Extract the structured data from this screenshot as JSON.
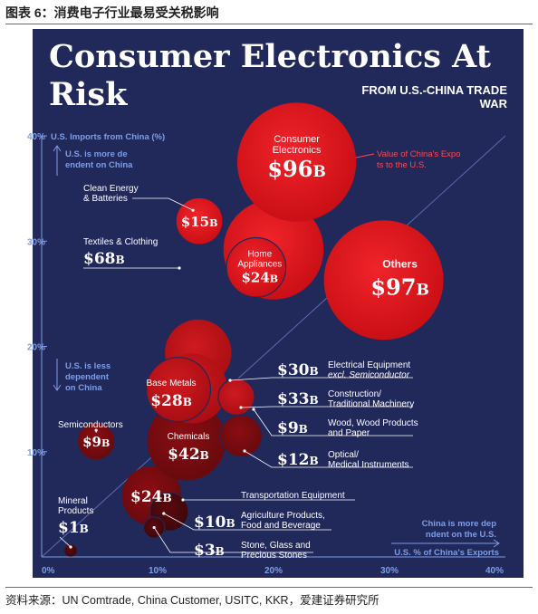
{
  "figure": {
    "caption": "图表 6：消费电子行业最易受关税影响",
    "source": "资料来源：UN Comtrade, China Customer, USITC, KKR，爱建证券研究所"
  },
  "chart_data": {
    "type": "scatter",
    "title": "Consumer Electronics At Risk",
    "subtitle": "FROM U.S.-CHINA TRADE WAR",
    "xlabel": "U.S. % of China's Exports",
    "ylabel": "U.S. Imports from China (%)",
    "xlim": [
      0,
      40
    ],
    "ylim": [
      0,
      40
    ],
    "xticks": [
      "0%",
      "10%",
      "20%",
      "30%",
      "40%"
    ],
    "yticks": [
      "10%",
      "20%",
      "30%",
      "40%"
    ],
    "size_legend": "Value of China's Exports to the U.S.",
    "annotations": {
      "more_dependent_on_china": "U.S. is more dependent on China",
      "less_dependent_on_china": "U.S. is less dependent on China",
      "china_more_dependent": "China is more dependent on the U.S."
    },
    "grid": false,
    "points": [
      {
        "name": "Consumer Electronics",
        "x": 22,
        "y": 37.5,
        "value": 96,
        "value_label": "$96B"
      },
      {
        "name": "Others",
        "x": 29.5,
        "y": 26.3,
        "value": 97,
        "value_label": "$97B"
      },
      {
        "name": "Home Appliances",
        "x": 18.5,
        "y": 27.5,
        "value": 24,
        "value_label": "$24B"
      },
      {
        "name": "Textiles & Clothing",
        "x": 20,
        "y": 29.2,
        "value": 68,
        "value_label": "$68B"
      },
      {
        "name": "Clean Energy & Batteries",
        "x": 13.6,
        "y": 31.9,
        "value": 15,
        "value_label": "$15B"
      },
      {
        "name": "Electrical Equipment excl. Semiconductor",
        "x": 13.5,
        "y": 19.4,
        "value": 30,
        "value_label": "$30B"
      },
      {
        "name": "Base Metals",
        "x": 11.8,
        "y": 15.9,
        "value": 28,
        "value_label": "$28B"
      },
      {
        "name": "Construction/ Traditional Machinery",
        "x": 13,
        "y": 16,
        "value": 33,
        "value_label": "$33B"
      },
      {
        "name": "Wood, Wood Products and Paper",
        "x": 16.8,
        "y": 15.2,
        "value": 9,
        "value_label": "$9B"
      },
      {
        "name": "Optical/ Medical Instruments",
        "x": 17.2,
        "y": 11.5,
        "value": 12,
        "value_label": "$12B"
      },
      {
        "name": "Chemicals",
        "x": 12.5,
        "y": 11,
        "value": 42,
        "value_label": "$42B"
      },
      {
        "name": "Semiconductors",
        "x": 4.7,
        "y": 11,
        "value": 9,
        "value_label": "$9B"
      },
      {
        "name": "Transportation Equipment",
        "x": 9.5,
        "y": 5.8,
        "value": 24,
        "value_label": "$24B"
      },
      {
        "name": "Agriculture Products, Food and Beverage",
        "x": 11,
        "y": 4.3,
        "value": 10,
        "value_label": "$10B"
      },
      {
        "name": "Stone, Glass and Precious Stones",
        "x": 9.7,
        "y": 2.8,
        "value": 3,
        "value_label": "$3B"
      },
      {
        "name": "Mineral Products",
        "x": 2.5,
        "y": 0.6,
        "value": 1,
        "value_label": "$1B"
      }
    ]
  }
}
